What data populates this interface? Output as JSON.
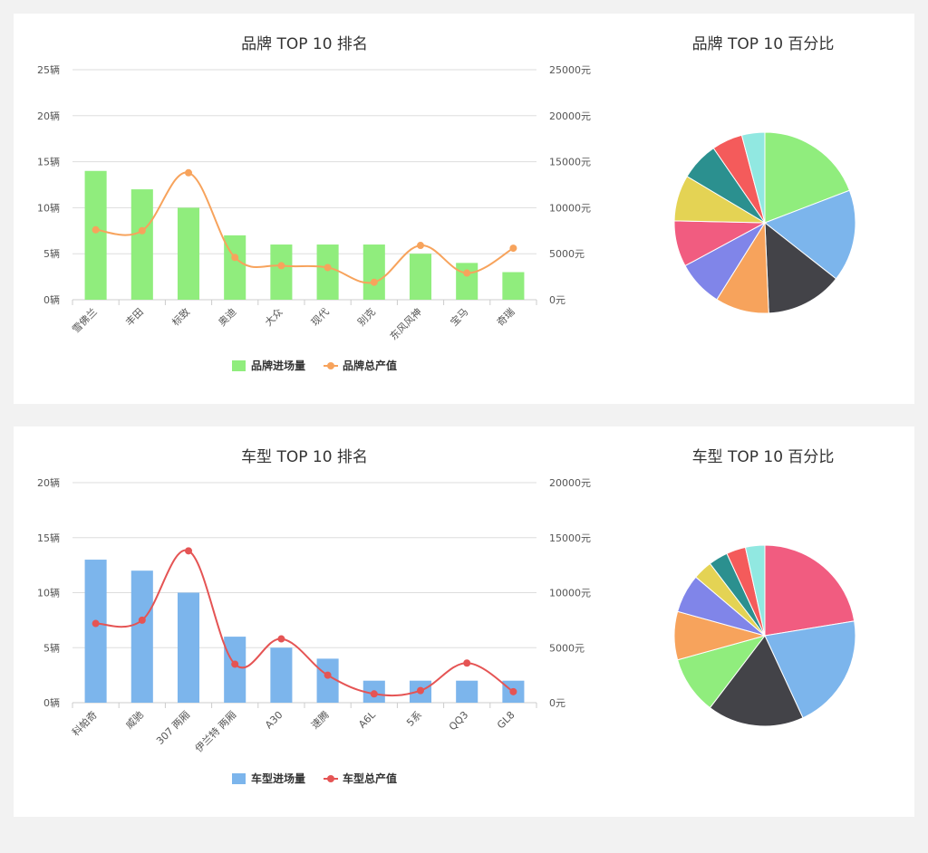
{
  "chart_data": [
    {
      "id": "brand-rank",
      "type": "bar+line",
      "title": "品牌 TOP 10 排名",
      "categories": [
        "雪佛兰",
        "丰田",
        "标致",
        "奥迪",
        "大众",
        "现代",
        "别克",
        "东风风神",
        "宝马",
        "奇瑞"
      ],
      "series": [
        {
          "name": "品牌进场量",
          "type": "bar",
          "axis": "left",
          "color": "#90ed7d",
          "values": [
            14,
            12,
            10,
            7,
            6,
            6,
            6,
            5,
            4,
            3
          ]
        },
        {
          "name": "品牌总产值",
          "type": "line",
          "axis": "right",
          "color": "#f7a35c",
          "values": [
            7600,
            7500,
            13800,
            4600,
            3700,
            3500,
            1900,
            5900,
            2900,
            5600
          ]
        }
      ],
      "y_left": {
        "min": 0,
        "max": 25,
        "ticks": [
          0,
          5,
          10,
          15,
          20,
          25
        ],
        "unit": "辆"
      },
      "y_right": {
        "min": 0,
        "max": 25000,
        "ticks": [
          0,
          5000,
          10000,
          15000,
          20000,
          25000
        ],
        "unit": "元"
      },
      "grid": true,
      "legend": "bottom"
    },
    {
      "id": "brand-pie",
      "type": "pie",
      "title": "品牌 TOP 10 百分比",
      "colors": [
        "#90ed7d",
        "#7cb5ec",
        "#434348",
        "#f7a35c",
        "#8085e9",
        "#f15c80",
        "#e4d354",
        "#2b908f",
        "#f45b5b",
        "#91e8e1"
      ],
      "values": [
        14,
        12,
        10,
        7,
        6,
        6,
        6,
        5,
        4,
        3
      ]
    },
    {
      "id": "model-rank",
      "type": "bar+line",
      "title": "车型 TOP 10 排名",
      "categories": [
        "科帕奇",
        "威驰",
        "307 两厢",
        "伊兰特 两厢",
        "A30",
        "速腾",
        "A6L",
        "5系",
        "QQ3",
        "GL8"
      ],
      "series": [
        {
          "name": "车型进场量",
          "type": "bar",
          "axis": "left",
          "color": "#7cb5ec",
          "values": [
            13,
            12,
            10,
            6,
            5,
            4,
            2,
            2,
            2,
            2
          ]
        },
        {
          "name": "车型总产值",
          "type": "line",
          "axis": "right",
          "color": "#e55454",
          "values": [
            7200,
            7500,
            13800,
            3500,
            5800,
            2500,
            800,
            1100,
            3600,
            1000
          ]
        }
      ],
      "y_left": {
        "min": 0,
        "max": 20,
        "ticks": [
          0,
          5,
          10,
          15,
          20
        ],
        "unit": "辆"
      },
      "y_right": {
        "min": 0,
        "max": 20000,
        "ticks": [
          0,
          5000,
          10000,
          15000,
          20000
        ],
        "unit": "元"
      },
      "grid": true,
      "legend": "bottom"
    },
    {
      "id": "model-pie",
      "type": "pie",
      "title": "车型 TOP 10 百分比",
      "colors": [
        "#f15c80",
        "#7cb5ec",
        "#434348",
        "#90ed7d",
        "#f7a35c",
        "#8085e9",
        "#e4d354",
        "#2b908f",
        "#f45b5b",
        "#91e8e1"
      ],
      "values": [
        13,
        12,
        10,
        6,
        5,
        4,
        2,
        2,
        2,
        2
      ]
    }
  ]
}
